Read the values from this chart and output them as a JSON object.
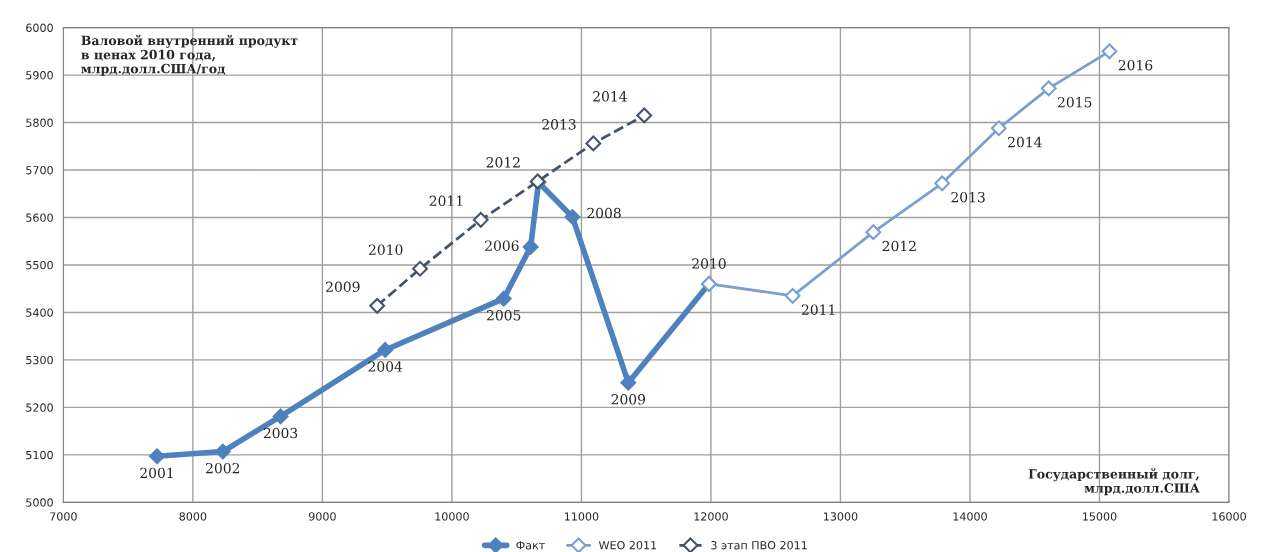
{
  "chart_data": {
    "type": "line",
    "xlabel": "Государственный долг,\nмлрд.долл.США",
    "ylabel": "Валовой внутренний продукт\nв ценах 2010 года,\nмлрд.долл.США/год",
    "xlim": [
      7000,
      16000
    ],
    "xticks": [
      7000,
      8000,
      9000,
      10000,
      11000,
      12000,
      13000,
      14000,
      15000,
      16000
    ],
    "ylim": [
      5000,
      6000
    ],
    "yticks": [
      5000,
      5100,
      5200,
      5300,
      5400,
      5500,
      5600,
      5700,
      5800,
      5900,
      6000
    ],
    "grid": true,
    "legend": "bottom",
    "series": [
      {
        "name": "Факт",
        "color": "#4f81bd",
        "marker": "diamond",
        "line_style": "solid",
        "x": [
          7723,
          8231,
          8677,
          9485,
          10400,
          10608,
          10669,
          10931,
          11362,
          11985
        ],
        "values": [
          5097,
          5107,
          5181,
          5321,
          5429,
          5538,
          5674,
          5601,
          5252,
          5460
        ]
      },
      {
        "name": "WEO 2011",
        "color": "#7ba0cd",
        "marker": "diamond",
        "line_style": "solid",
        "x": [
          11985,
          12631,
          13254,
          13785,
          14223,
          14608,
          15077
        ],
        "values": [
          5460,
          5435,
          5569,
          5672,
          5788,
          5872,
          5950
        ]
      },
      {
        "name": "3 этап ПВО 2011",
        "color": "#44546a",
        "marker": "diamond",
        "line_style": "dashed",
        "x": [
          9423,
          9754,
          10223,
          10662,
          11092,
          11485
        ],
        "values": [
          5414,
          5492,
          5595,
          5676,
          5756,
          5815
        ]
      }
    ],
    "annotations": [
      {
        "text": "2001",
        "x": 7723,
        "y": 5097
      },
      {
        "text": "2002",
        "x": 8231,
        "y": 5107
      },
      {
        "text": "2003",
        "x": 8677,
        "y": 5181
      },
      {
        "text": "2004",
        "x": 9485,
        "y": 5321
      },
      {
        "text": "2005",
        "x": 10400,
        "y": 5429
      },
      {
        "text": "2006",
        "x": 10608,
        "y": 5538
      },
      {
        "text": "2008",
        "x": 10931,
        "y": 5601
      },
      {
        "text": "2009",
        "x": 11362,
        "y": 5252
      },
      {
        "text": "2010",
        "x": 11985,
        "y": 5460
      },
      {
        "text": "2011",
        "x": 12631,
        "y": 5435
      },
      {
        "text": "2012",
        "x": 13254,
        "y": 5569
      },
      {
        "text": "2013",
        "x": 13785,
        "y": 5672
      },
      {
        "text": "2014",
        "x": 14223,
        "y": 5788
      },
      {
        "text": "2015",
        "x": 14608,
        "y": 5872
      },
      {
        "text": "2016",
        "x": 15077,
        "y": 5950
      },
      {
        "text": "2009",
        "x": 9423,
        "y": 5414
      },
      {
        "text": "2010",
        "x": 9754,
        "y": 5492
      },
      {
        "text": "2011",
        "x": 10223,
        "y": 5595
      },
      {
        "text": "2012",
        "x": 10662,
        "y": 5676
      },
      {
        "text": "2013",
        "x": 11092,
        "y": 5756
      },
      {
        "text": "2014",
        "x": 11485,
        "y": 5815
      }
    ]
  }
}
